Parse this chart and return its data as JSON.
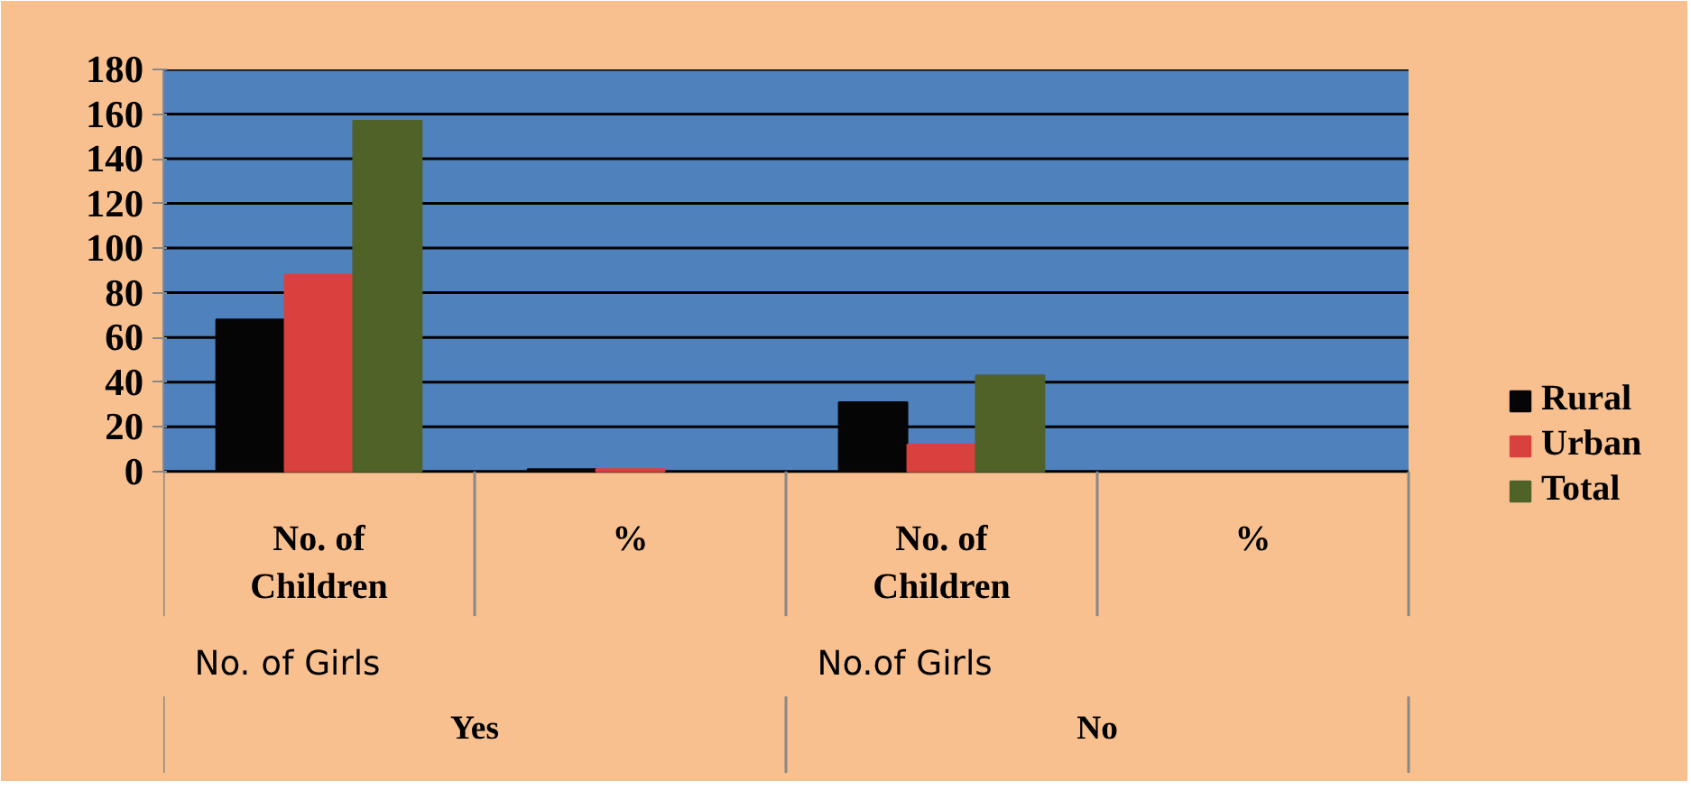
{
  "chart_data": {
    "type": "bar",
    "categories": [
      "No. of\nChildren",
      "%",
      "No. of\nChildren",
      "%"
    ],
    "series": [
      {
        "name": "Rural",
        "color": "#050505",
        "values": [
          68,
          1,
          31,
          null
        ]
      },
      {
        "name": "Urban",
        "color": "#d9413e",
        "values": [
          88,
          1,
          12,
          null
        ]
      },
      {
        "name": "Total",
        "color": "#4f6228",
        "values": [
          157,
          null,
          43,
          null
        ]
      }
    ],
    "annotations": [
      "No. of Girls",
      "No.of Girls",
      "Yes",
      "No"
    ],
    "ylim": [
      0,
      180
    ],
    "yticks": [
      0,
      20,
      40,
      60,
      80,
      100,
      120,
      140,
      160,
      180
    ],
    "grid": "y",
    "legend": "right"
  }
}
